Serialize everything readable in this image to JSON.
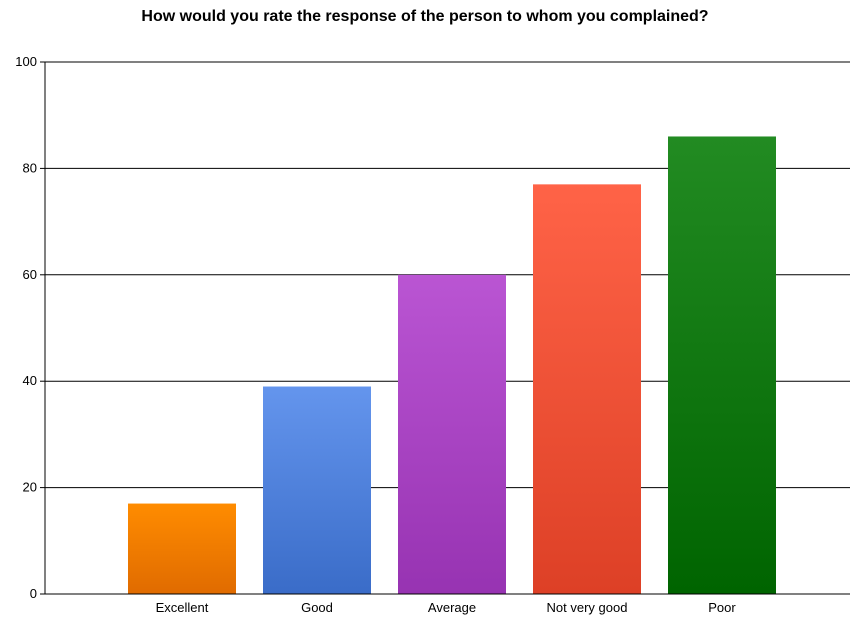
{
  "chart_data": {
    "type": "bar",
    "title": "How would you rate the response of the person to whom you complained?",
    "xlabel": "",
    "ylabel": "",
    "categories": [
      "Excellent",
      "Good",
      "Average",
      "Not very good",
      "Poor"
    ],
    "values": [
      17,
      39,
      60,
      77,
      86
    ],
    "ylim": [
      0,
      100
    ],
    "yticks": [
      0,
      20,
      40,
      60,
      80,
      100
    ],
    "grid": true,
    "legend": "none",
    "bar_colors": [
      {
        "top": "#ff8c00",
        "bottom": "#e06b00"
      },
      {
        "top": "#6495ed",
        "bottom": "#3a6cc8"
      },
      {
        "top": "#ba55d3",
        "bottom": "#9733b2"
      },
      {
        "top": "#ff6347",
        "bottom": "#dd4026"
      },
      {
        "top": "#228b22",
        "bottom": "#006400"
      }
    ]
  }
}
